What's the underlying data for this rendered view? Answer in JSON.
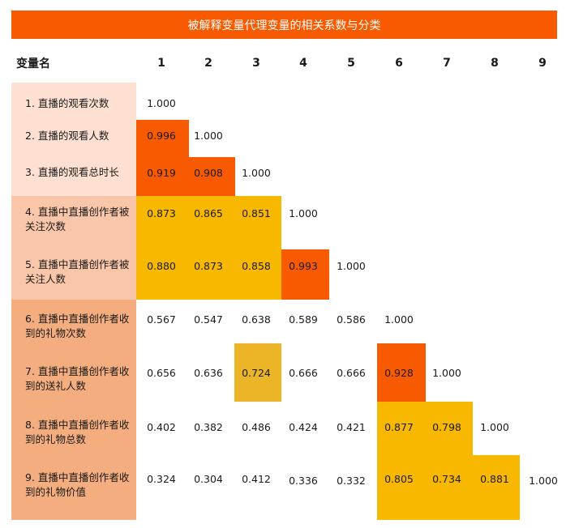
{
  "title": "被解释变量代理变量的相关系数与分类",
  "header": {
    "variable_name": "变量名",
    "columns": [
      "1",
      "2",
      "3",
      "4",
      "5",
      "6",
      "7",
      "8",
      "9"
    ]
  },
  "rows": [
    {
      "label": "1. 直播的观看次数",
      "values": [
        "1.000"
      ]
    },
    {
      "label": "2. 直播的观看人数",
      "values": [
        "0.996",
        "1.000"
      ]
    },
    {
      "label": "3. 直播的观看总时长",
      "values": [
        "0.919",
        "0.908",
        "1.000"
      ]
    },
    {
      "label": "4. 直播中直播创作者被关注次数",
      "values": [
        "0.873",
        "0.865",
        "0.851",
        "1.000"
      ]
    },
    {
      "label": "5. 直播中直播创作者被关注人数",
      "values": [
        "0.880",
        "0.873",
        "0.858",
        "0.993",
        "1.000"
      ]
    },
    {
      "label": "6. 直播中直播创作者收到的礼物次数",
      "values": [
        "0.567",
        "0.547",
        "0.638",
        "0.589",
        "0.586",
        "1.000"
      ]
    },
    {
      "label": "7. 直播中直播创作者收到的送礼人数",
      "values": [
        "0.656",
        "0.636",
        "0.724",
        "0.666",
        "0.666",
        "0.928",
        "1.000"
      ]
    },
    {
      "label": "8. 直播中直播创作者收到的礼物总数",
      "values": [
        "0.402",
        "0.382",
        "0.486",
        "0.424",
        "0.421",
        "0.877",
        "0.798",
        "1.000"
      ]
    },
    {
      "label": "9. 直播中直播创作者收到的礼物价值",
      "values": [
        "0.324",
        "0.304",
        "0.412",
        "0.336",
        "0.332",
        "0.805",
        "0.734",
        "0.881",
        "1.000"
      ]
    }
  ],
  "colors": {
    "title_background": "#f75a00",
    "strong_correlation": "#f75a00",
    "moderate_correlation": "#f8b800",
    "cross_group": "#ecb427",
    "group_1_band": "#fde0d1",
    "group_2_band": "#f9c6a9",
    "group_3_band": "#f3ad7e"
  }
}
